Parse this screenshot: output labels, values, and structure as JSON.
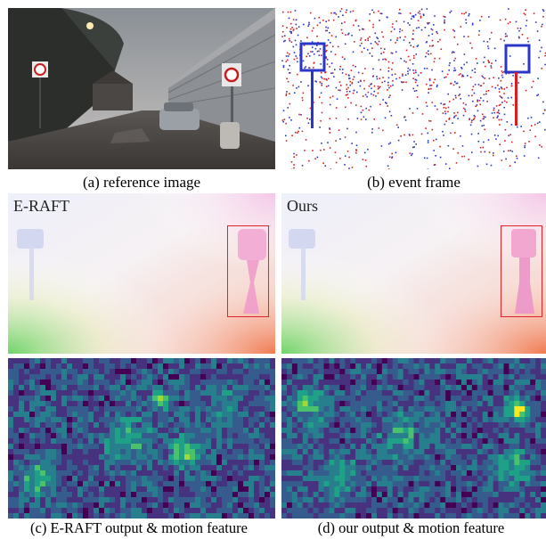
{
  "figure": {
    "panels": [
      {
        "id": "a",
        "caption": "(a) reference image",
        "content": "street photo"
      },
      {
        "id": "b",
        "caption": "(b) event frame",
        "content": "event frame"
      },
      {
        "id": "e-raft-flow",
        "overlay_label": "E-RAFT",
        "content": "flow visualization",
        "highlight_color": "#e0242b"
      },
      {
        "id": "ours-flow",
        "overlay_label": "Ours",
        "content": "flow visualization",
        "highlight_color": "#e0242b"
      },
      {
        "id": "c",
        "caption": "(c) E-RAFT output & motion feature",
        "content": "motion feature heatmap"
      },
      {
        "id": "d",
        "caption": "(d) our output & motion feature",
        "content": "motion feature heatmap"
      }
    ]
  }
}
